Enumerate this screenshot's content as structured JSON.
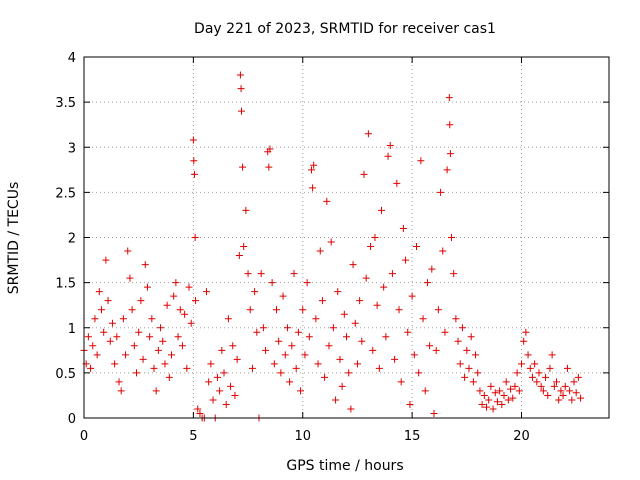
{
  "chart_data": {
    "type": "scatter",
    "title": "Day 221 of 2023, SRMTID for receiver cas1",
    "xlabel": "GPS time / hours",
    "ylabel": "SRMTID / TECUs",
    "xlim": [
      0,
      24
    ],
    "ylim": [
      0,
      4
    ],
    "x_ticks": [
      0,
      5,
      10,
      15,
      20
    ],
    "x_tick_labels": [
      "0",
      "5",
      "10",
      "15",
      "20"
    ],
    "y_ticks": [
      0,
      0.5,
      1,
      1.5,
      2,
      2.5,
      3,
      3.5,
      4
    ],
    "y_tick_labels": [
      "0",
      "0.5",
      "1",
      "1.5",
      "2",
      "2.5",
      "3",
      "3.5",
      "4"
    ],
    "grid": true,
    "marker": "+",
    "series": [
      {
        "name": "cas1",
        "color": "#e00000",
        "points": [
          [
            0.0,
            0.75
          ],
          [
            0.1,
            0.6
          ],
          [
            0.2,
            0.9
          ],
          [
            0.3,
            0.55
          ],
          [
            0.4,
            0.8
          ],
          [
            0.5,
            1.1
          ],
          [
            0.6,
            0.7
          ],
          [
            0.7,
            1.4
          ],
          [
            0.8,
            1.2
          ],
          [
            0.9,
            0.95
          ],
          [
            1.0,
            1.75
          ],
          [
            1.1,
            1.3
          ],
          [
            1.2,
            0.85
          ],
          [
            1.3,
            1.05
          ],
          [
            1.4,
            0.6
          ],
          [
            1.5,
            0.9
          ],
          [
            1.6,
            0.4
          ],
          [
            1.7,
            0.3
          ],
          [
            1.8,
            1.1
          ],
          [
            1.9,
            0.7
          ],
          [
            2.0,
            1.85
          ],
          [
            2.1,
            1.55
          ],
          [
            2.2,
            1.2
          ],
          [
            2.3,
            0.8
          ],
          [
            2.4,
            0.5
          ],
          [
            2.5,
            0.95
          ],
          [
            2.6,
            1.3
          ],
          [
            2.7,
            0.65
          ],
          [
            2.8,
            1.7
          ],
          [
            2.9,
            1.45
          ],
          [
            3.0,
            0.9
          ],
          [
            3.1,
            1.1
          ],
          [
            3.2,
            0.55
          ],
          [
            3.3,
            0.3
          ],
          [
            3.4,
            0.75
          ],
          [
            3.5,
            1.0
          ],
          [
            3.6,
            0.85
          ],
          [
            3.7,
            0.6
          ],
          [
            3.8,
            1.25
          ],
          [
            3.9,
            0.45
          ],
          [
            4.0,
            0.7
          ],
          [
            4.1,
            1.35
          ],
          [
            4.2,
            1.5
          ],
          [
            4.3,
            0.9
          ],
          [
            4.4,
            1.2
          ],
          [
            4.5,
            0.8
          ],
          [
            4.6,
            1.15
          ],
          [
            4.7,
            0.55
          ],
          [
            4.8,
            1.45
          ],
          [
            4.9,
            1.05
          ],
          [
            5.0,
            3.08
          ],
          [
            5.02,
            2.85
          ],
          [
            5.05,
            2.7
          ],
          [
            5.08,
            2.0
          ],
          [
            5.1,
            1.3
          ],
          [
            5.2,
            0.1
          ],
          [
            5.3,
            0.05
          ],
          [
            5.4,
            0.0
          ],
          [
            5.5,
            0.0
          ],
          [
            5.6,
            1.4
          ],
          [
            5.7,
            0.4
          ],
          [
            5.8,
            0.6
          ],
          [
            5.9,
            0.2
          ],
          [
            6.0,
            0.0
          ],
          [
            6.1,
            0.45
          ],
          [
            6.2,
            0.3
          ],
          [
            6.3,
            0.75
          ],
          [
            6.4,
            0.5
          ],
          [
            6.5,
            0.15
          ],
          [
            6.6,
            1.1
          ],
          [
            6.7,
            0.35
          ],
          [
            6.8,
            0.8
          ],
          [
            6.9,
            0.25
          ],
          [
            7.0,
            0.65
          ],
          [
            7.1,
            1.8
          ],
          [
            7.15,
            3.8
          ],
          [
            7.18,
            3.65
          ],
          [
            7.2,
            3.4
          ],
          [
            7.25,
            2.78
          ],
          [
            7.3,
            1.9
          ],
          [
            7.4,
            2.3
          ],
          [
            7.5,
            1.6
          ],
          [
            7.6,
            1.2
          ],
          [
            7.7,
            0.55
          ],
          [
            7.8,
            1.4
          ],
          [
            7.9,
            0.95
          ],
          [
            8.0,
            0.0
          ],
          [
            8.1,
            1.6
          ],
          [
            8.2,
            1.0
          ],
          [
            8.3,
            0.75
          ],
          [
            8.4,
            2.95
          ],
          [
            8.45,
            2.78
          ],
          [
            8.5,
            2.98
          ],
          [
            8.6,
            1.5
          ],
          [
            8.7,
            0.6
          ],
          [
            8.8,
            1.2
          ],
          [
            8.9,
            0.85
          ],
          [
            9.0,
            0.5
          ],
          [
            9.1,
            1.35
          ],
          [
            9.2,
            0.7
          ],
          [
            9.3,
            1.0
          ],
          [
            9.4,
            0.4
          ],
          [
            9.5,
            0.8
          ],
          [
            9.6,
            1.6
          ],
          [
            9.7,
            0.55
          ],
          [
            9.8,
            0.95
          ],
          [
            9.9,
            0.3
          ],
          [
            10.0,
            1.2
          ],
          [
            10.1,
            0.7
          ],
          [
            10.2,
            1.5
          ],
          [
            10.3,
            0.9
          ],
          [
            10.4,
            2.75
          ],
          [
            10.45,
            2.55
          ],
          [
            10.5,
            2.8
          ],
          [
            10.6,
            1.1
          ],
          [
            10.7,
            0.6
          ],
          [
            10.8,
            1.85
          ],
          [
            10.9,
            1.3
          ],
          [
            11.0,
            0.45
          ],
          [
            11.1,
            2.4
          ],
          [
            11.2,
            0.8
          ],
          [
            11.3,
            1.95
          ],
          [
            11.4,
            1.0
          ],
          [
            11.5,
            0.2
          ],
          [
            11.6,
            1.4
          ],
          [
            11.7,
            0.65
          ],
          [
            11.8,
            0.35
          ],
          [
            11.9,
            1.15
          ],
          [
            12.0,
            0.9
          ],
          [
            12.1,
            0.5
          ],
          [
            12.2,
            0.1
          ],
          [
            12.3,
            1.7
          ],
          [
            12.4,
            1.05
          ],
          [
            12.5,
            0.6
          ],
          [
            12.6,
            1.3
          ],
          [
            12.7,
            0.85
          ],
          [
            12.8,
            2.7
          ],
          [
            12.9,
            1.55
          ],
          [
            13.0,
            3.15
          ],
          [
            13.1,
            1.9
          ],
          [
            13.2,
            0.75
          ],
          [
            13.3,
            2.0
          ],
          [
            13.4,
            1.25
          ],
          [
            13.5,
            0.55
          ],
          [
            13.6,
            2.3
          ],
          [
            13.7,
            1.45
          ],
          [
            13.8,
            0.9
          ],
          [
            13.9,
            2.9
          ],
          [
            14.0,
            3.02
          ],
          [
            14.1,
            1.6
          ],
          [
            14.2,
            0.65
          ],
          [
            14.3,
            2.6
          ],
          [
            14.4,
            1.2
          ],
          [
            14.5,
            0.4
          ],
          [
            14.6,
            2.1
          ],
          [
            14.7,
            1.75
          ],
          [
            14.8,
            0.95
          ],
          [
            14.9,
            0.15
          ],
          [
            15.0,
            1.35
          ],
          [
            15.1,
            0.7
          ],
          [
            15.2,
            1.9
          ],
          [
            15.3,
            0.5
          ],
          [
            15.4,
            2.85
          ],
          [
            15.5,
            1.1
          ],
          [
            15.6,
            0.3
          ],
          [
            15.7,
            1.5
          ],
          [
            15.8,
            0.8
          ],
          [
            15.9,
            1.65
          ],
          [
            16.0,
            0.05
          ],
          [
            16.1,
            0.75
          ],
          [
            16.2,
            1.2
          ],
          [
            16.3,
            2.5
          ],
          [
            16.4,
            1.85
          ],
          [
            16.5,
            0.95
          ],
          [
            16.6,
            2.75
          ],
          [
            16.7,
            3.55
          ],
          [
            16.72,
            3.25
          ],
          [
            16.75,
            2.93
          ],
          [
            16.8,
            2.0
          ],
          [
            16.9,
            1.6
          ],
          [
            17.0,
            1.1
          ],
          [
            17.1,
            0.85
          ],
          [
            17.2,
            0.6
          ],
          [
            17.3,
            1.0
          ],
          [
            17.4,
            0.45
          ],
          [
            17.5,
            0.75
          ],
          [
            17.6,
            0.55
          ],
          [
            17.7,
            0.9
          ],
          [
            17.8,
            0.4
          ],
          [
            17.9,
            0.7
          ],
          [
            18.0,
            0.5
          ],
          [
            18.1,
            0.3
          ],
          [
            18.2,
            0.15
          ],
          [
            18.3,
            0.25
          ],
          [
            18.4,
            0.12
          ],
          [
            18.5,
            0.2
          ],
          [
            18.6,
            0.35
          ],
          [
            18.7,
            0.1
          ],
          [
            18.8,
            0.28
          ],
          [
            18.9,
            0.18
          ],
          [
            19.0,
            0.3
          ],
          [
            19.1,
            0.15
          ],
          [
            19.2,
            0.25
          ],
          [
            19.3,
            0.4
          ],
          [
            19.4,
            0.2
          ],
          [
            19.5,
            0.32
          ],
          [
            19.6,
            0.22
          ],
          [
            19.7,
            0.35
          ],
          [
            19.8,
            0.5
          ],
          [
            19.9,
            0.3
          ],
          [
            20.0,
            0.6
          ],
          [
            20.1,
            0.85
          ],
          [
            20.2,
            0.95
          ],
          [
            20.3,
            0.7
          ],
          [
            20.4,
            0.55
          ],
          [
            20.5,
            0.45
          ],
          [
            20.6,
            0.6
          ],
          [
            20.7,
            0.4
          ],
          [
            20.8,
            0.5
          ],
          [
            20.9,
            0.35
          ],
          [
            21.0,
            0.3
          ],
          [
            21.1,
            0.45
          ],
          [
            21.2,
            0.25
          ],
          [
            21.3,
            0.55
          ],
          [
            21.4,
            0.7
          ],
          [
            21.5,
            0.35
          ],
          [
            21.6,
            0.4
          ],
          [
            21.7,
            0.2
          ],
          [
            21.8,
            0.3
          ],
          [
            21.9,
            0.25
          ],
          [
            22.0,
            0.35
          ],
          [
            22.1,
            0.55
          ],
          [
            22.2,
            0.3
          ],
          [
            22.3,
            0.2
          ],
          [
            22.4,
            0.4
          ],
          [
            22.5,
            0.28
          ],
          [
            22.6,
            0.45
          ],
          [
            22.7,
            0.22
          ]
        ]
      }
    ]
  }
}
